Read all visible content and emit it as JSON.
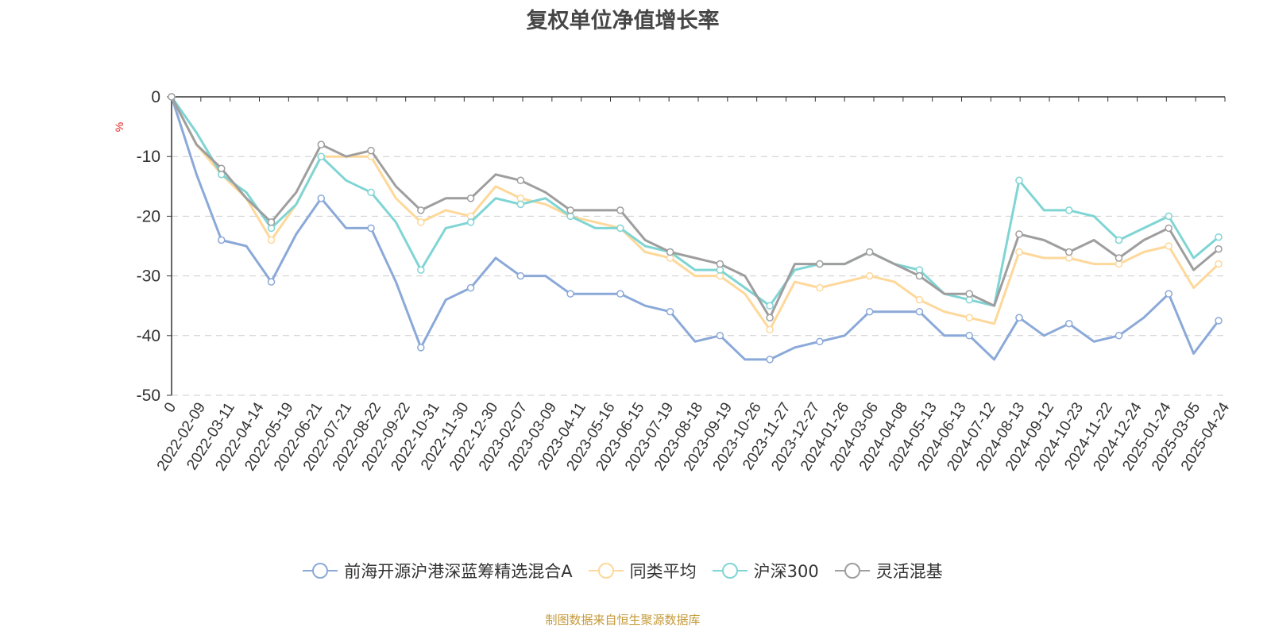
{
  "title": "复权单位净值增长率",
  "source": "制图数据来自恒生聚源数据库",
  "chart_data": {
    "type": "line",
    "title": "复权单位净值增长率",
    "ylabel": "%",
    "ylim": [
      -50,
      0
    ],
    "yticks": [
      0,
      -10,
      -20,
      -30,
      -40,
      -50
    ],
    "xticks": [
      "0",
      "2022-02-09",
      "2022-03-11",
      "2022-04-14",
      "2022-05-19",
      "2022-06-21",
      "2022-07-21",
      "2022-08-22",
      "2022-09-22",
      "2022-10-31",
      "2022-11-30",
      "2022-12-30",
      "2023-02-07",
      "2023-03-09",
      "2023-04-11",
      "2023-05-16",
      "2023-06-15",
      "2023-07-19",
      "2023-08-18",
      "2023-09-19",
      "2023-10-26",
      "2023-11-27",
      "2023-12-27",
      "2024-01-26",
      "2024-03-06",
      "2024-04-08",
      "2024-05-13",
      "2024-06-13",
      "2024-07-12",
      "2024-08-13",
      "2024-09-12",
      "2024-10-23",
      "2024-11-22",
      "2024-12-24",
      "2025-01-24",
      "2025-03-05",
      "2025-04-24"
    ],
    "grid": "dashed horizontal",
    "legend_position": "bottom",
    "series": [
      {
        "name": "前海开源沪港深蓝筹精选混合A",
        "color": "#8ba9d8",
        "values": [
          0,
          -13,
          -24,
          -25,
          -31,
          -23,
          -17,
          -22,
          -22,
          -31,
          -42,
          -34,
          -32,
          -27,
          -30,
          -30,
          -33,
          -33,
          -33,
          -35,
          -36,
          -41,
          -40,
          -44,
          -44,
          -42,
          -41,
          -40,
          -36,
          -36,
          -36,
          -40,
          -40,
          -44,
          -37,
          -40,
          -38,
          -41,
          -40,
          -37,
          -33,
          -43,
          -37.5
        ]
      },
      {
        "name": "同类平均",
        "color": "#fdd89a",
        "values": [
          0,
          -8,
          -13,
          -17,
          -24,
          -18,
          -10,
          -10,
          -10,
          -17,
          -21,
          -19,
          -20,
          -15,
          -17,
          -18,
          -20,
          -21,
          -22,
          -26,
          -27,
          -30,
          -30,
          -33,
          -39,
          -31,
          -32,
          -31,
          -30,
          -31,
          -34,
          -36,
          -37,
          -38,
          -26,
          -27,
          -27,
          -28,
          -28,
          -26,
          -25,
          -32,
          -28
        ]
      },
      {
        "name": "沪深300",
        "color": "#7fd5d4",
        "values": [
          0,
          -6,
          -13,
          -16,
          -22,
          -18,
          -10,
          -14,
          -16,
          -21,
          -29,
          -22,
          -21,
          -17,
          -18,
          -17,
          -20,
          -22,
          -22,
          -25,
          -26,
          -29,
          -29,
          -32,
          -35,
          -29,
          -28,
          -28,
          -26,
          -28,
          -29,
          -33,
          -34,
          -35,
          -14,
          -19,
          -19,
          -20,
          -24,
          -22,
          -20,
          -27,
          -23.5
        ]
      },
      {
        "name": "灵活混基",
        "color": "#9e9e9e",
        "values": [
          0,
          -8,
          -12,
          -17,
          -21,
          -16,
          -8,
          -10,
          -9,
          -15,
          -19,
          -17,
          -17,
          -13,
          -14,
          -16,
          -19,
          -19,
          -19,
          -24,
          -26,
          -27,
          -28,
          -30,
          -37,
          -28,
          -28,
          -28,
          -26,
          -28,
          -30,
          -33,
          -33,
          -35,
          -23,
          -24,
          -26,
          -24,
          -27,
          -24,
          -22,
          -29,
          -25.5
        ]
      }
    ]
  }
}
